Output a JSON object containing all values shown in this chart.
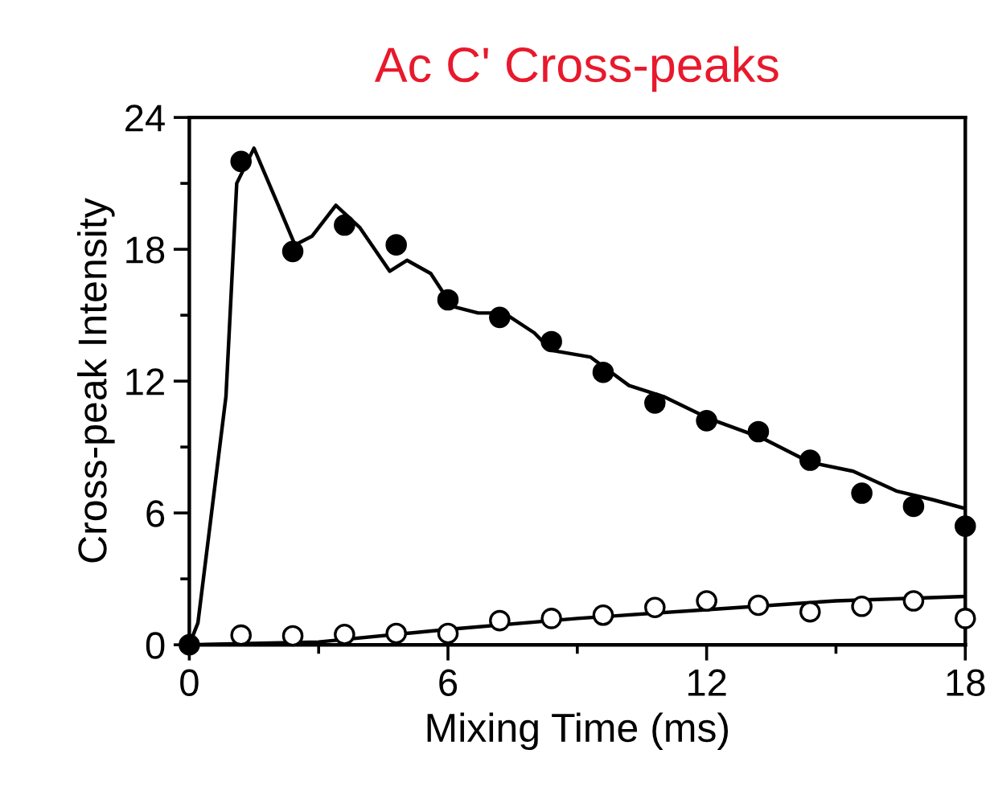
{
  "chart_data": {
    "type": "scatter",
    "title": "Ac C' Cross-peaks",
    "xlabel": "Mixing Time (ms)",
    "ylabel": "Cross-peak Intensity",
    "xlim": [
      0,
      18
    ],
    "ylim": [
      0,
      24
    ],
    "xticks": [
      0,
      {
        "value": 3,
        "label": null
      },
      6,
      {
        "value": 9,
        "label": null
      },
      12,
      {
        "value": 15,
        "label": null
      },
      18
    ],
    "yticks": [
      0,
      {
        "value": 3,
        "label": null
      },
      6,
      {
        "value": 9,
        "label": null
      },
      12,
      {
        "value": 15,
        "label": null
      },
      18,
      {
        "value": 21,
        "label": null
      },
      24
    ],
    "grid": false,
    "marker": "circle",
    "series": [
      {
        "type": "line",
        "color": "#000000",
        "line_style": "solid",
        "marker": "none",
        "x": [
          0,
          0.2,
          0.85,
          1.1,
          1.5,
          2.0,
          2.45,
          2.85,
          3.4,
          3.95,
          4.65,
          5.05,
          5.6,
          6.1,
          6.7,
          7.3,
          8.0,
          8.4,
          9.3,
          10.2,
          11.0,
          12.05,
          13.3,
          14.4,
          15.4,
          16.4,
          17.25,
          18
        ],
        "values": [
          0,
          1.0,
          11.3,
          21,
          22.6,
          20.3,
          18.2,
          18.6,
          20.0,
          19.0,
          17.0,
          17.5,
          16.9,
          15.4,
          15.1,
          15.1,
          14.2,
          13.4,
          13.1,
          11.8,
          11.3,
          10.3,
          9.4,
          8.3,
          7.9,
          7.0,
          6.6,
          6.2
        ]
      },
      {
        "type": "line",
        "color": "#000000",
        "line_style": "solid",
        "marker": "none",
        "x": [
          0,
          3,
          6,
          9,
          12,
          15,
          18
        ],
        "values": [
          0,
          0.13,
          0.7,
          1.2,
          1.6,
          2.0,
          2.2
        ]
      },
      {
        "color": "#000000",
        "x": [
          0,
          1.2,
          2.4,
          3.6,
          4.8,
          6.0,
          7.2,
          8.4,
          9.6,
          10.8,
          12.0,
          13.2,
          14.4,
          15.6,
          16.8,
          18.0
        ],
        "values": [
          0,
          22.0,
          17.9,
          19.1,
          18.2,
          15.7,
          14.9,
          13.8,
          12.4,
          11.0,
          10.2,
          9.7,
          8.4,
          6.9,
          6.3,
          5.4
        ]
      },
      {
        "color": "#ffffff",
        "x": [
          1.2,
          2.4,
          3.6,
          4.8,
          6.0,
          7.2,
          8.4,
          9.6,
          10.8,
          12.0,
          13.2,
          14.4,
          15.6,
          16.8,
          18.0
        ],
        "values": [
          0.44,
          0.41,
          0.47,
          0.52,
          0.52,
          1.1,
          1.2,
          1.35,
          1.7,
          2.0,
          1.8,
          1.5,
          1.75,
          2.0,
          1.2
        ]
      }
    ]
  }
}
